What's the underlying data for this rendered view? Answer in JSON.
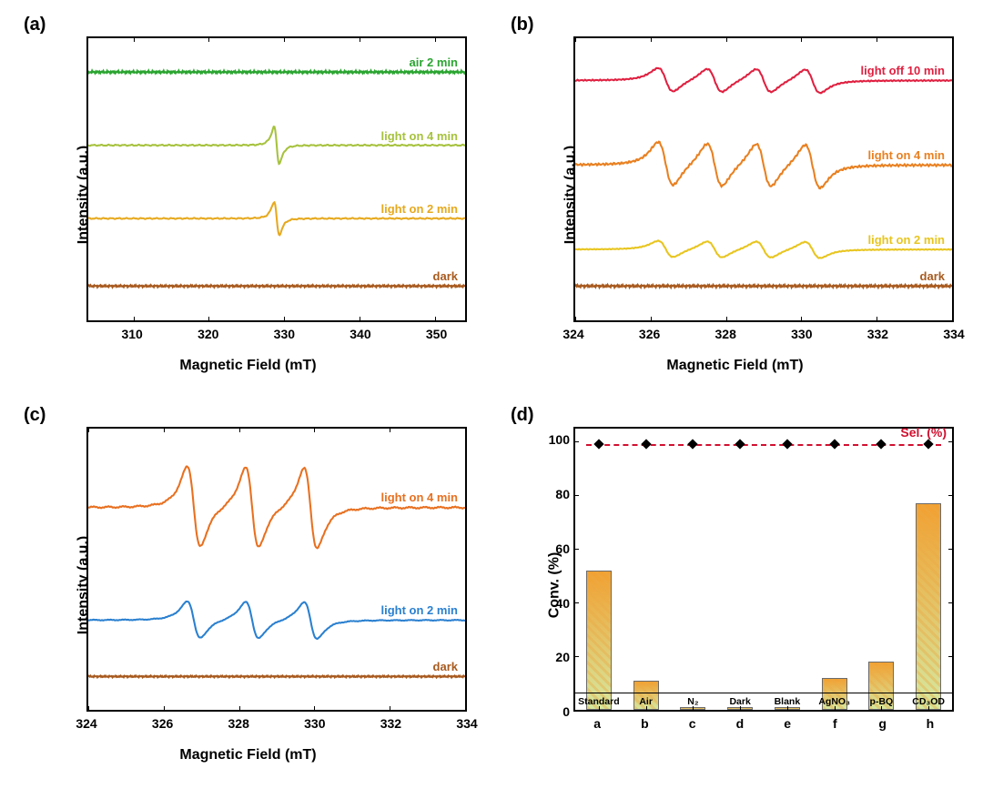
{
  "panels": {
    "a": {
      "label": "(a)",
      "xlabel": "Magnetic Field (mT)",
      "ylabel": "Intensity (a.u.)",
      "xlim": [
        304,
        354
      ],
      "xticks": [
        310,
        320,
        330,
        340,
        350
      ],
      "traces": [
        {
          "name": "air 2 min",
          "color": "#2aa530",
          "baseline": 0.88,
          "amp": 0.006,
          "peak_center": 329,
          "shape": "flat_noise"
        },
        {
          "name": "light on 4 min",
          "color": "#a6c23d",
          "baseline": 0.62,
          "amp": 0.1,
          "peak_center": 329,
          "shape": "deriv_single"
        },
        {
          "name": "light on 2 min",
          "color": "#e6a91e",
          "baseline": 0.36,
          "amp": 0.09,
          "peak_center": 329,
          "shape": "deriv_single"
        },
        {
          "name": "dark",
          "color": "#a85a1e",
          "baseline": 0.12,
          "amp": 0.005,
          "peak_center": 329,
          "shape": "flat_noise"
        }
      ],
      "line_width": 2.0
    },
    "b": {
      "label": "(b)",
      "xlabel": "Magnetic Field (mT)",
      "ylabel": "Intensity (a.u.)",
      "xlim": [
        324,
        334
      ],
      "xticks": [
        324,
        326,
        328,
        330,
        332,
        334
      ],
      "traces": [
        {
          "name": "light off 10 min",
          "color": "#e02040",
          "baseline": 0.85,
          "amp": 0.065,
          "centers": [
            326.4,
            327.7,
            329.0,
            330.3
          ],
          "shape": "quartet"
        },
        {
          "name": "light on 4 min",
          "color": "#e98020",
          "baseline": 0.55,
          "amp": 0.12,
          "centers": [
            326.4,
            327.7,
            329.0,
            330.3
          ],
          "shape": "quartet"
        },
        {
          "name": "light on 2 min",
          "color": "#e8c51e",
          "baseline": 0.25,
          "amp": 0.045,
          "centers": [
            326.4,
            327.7,
            329.0,
            330.3
          ],
          "shape": "quartet"
        },
        {
          "name": "dark",
          "color": "#a85a1e",
          "baseline": 0.12,
          "amp": 0.006,
          "centers": [],
          "shape": "flat_noise"
        }
      ],
      "line_width": 2.0
    },
    "c": {
      "label": "(c)",
      "xlabel": "Magnetic Field (mT)",
      "ylabel": "Intensity (a.u.)",
      "xlim": [
        324,
        334
      ],
      "xticks": [
        324,
        326,
        328,
        330,
        332,
        334
      ],
      "traces": [
        {
          "name": "light on 4 min",
          "color": "#e87020",
          "baseline": 0.72,
          "amp": 0.22,
          "centers": [
            326.8,
            328.35,
            329.9
          ],
          "shape": "triplet"
        },
        {
          "name": "light on 2 min",
          "color": "#2a80d0",
          "baseline": 0.32,
          "amp": 0.1,
          "centers": [
            326.8,
            328.35,
            329.9
          ],
          "shape": "triplet"
        },
        {
          "name": "dark",
          "color": "#a85a1e",
          "baseline": 0.12,
          "amp": 0.004,
          "centers": [],
          "shape": "flat_noise"
        }
      ],
      "line_width": 2.0
    },
    "d": {
      "label": "(d)",
      "xlabel_positions": [
        "a",
        "b",
        "c",
        "d",
        "e",
        "f",
        "g",
        "h"
      ],
      "xlabel": "",
      "ylabel": "Conv. (%)",
      "ylim": [
        0,
        105
      ],
      "yticks": [
        0,
        20,
        40,
        60,
        80,
        100
      ],
      "sel_label": "Sel. (%)",
      "sel_color": "#d01030",
      "sel_values": [
        99,
        99,
        99,
        99,
        99,
        99,
        99,
        99
      ],
      "bars": [
        {
          "letter": "a",
          "cond": "Standard",
          "conv": 52
        },
        {
          "letter": "b",
          "cond": "Air",
          "conv": 11
        },
        {
          "letter": "c",
          "cond": "N₂",
          "conv": 1
        },
        {
          "letter": "d",
          "cond": "Dark",
          "conv": 1
        },
        {
          "letter": "e",
          "cond": "Blank",
          "conv": 1
        },
        {
          "letter": "f",
          "cond": "AgNO₃",
          "conv": 12
        },
        {
          "letter": "g",
          "cond": "p-BQ",
          "conv": 18
        },
        {
          "letter": "h",
          "cond": "CD₃OD",
          "conv": 77
        }
      ],
      "bar_gradient_top": "#f2a030",
      "bar_gradient_bottom": "#d5e8a0",
      "bar_hatch_color": "#eaa945",
      "bar_border": "#6b6b6b",
      "marker_color": "#000000",
      "label_fontsize": 11
    }
  },
  "global": {
    "background": "#ffffff",
    "axis_line_width": 2,
    "title_fontsize": 20,
    "axis_label_fontsize": 16,
    "tick_fontsize": 14,
    "trace_label_fontsize": 13
  }
}
